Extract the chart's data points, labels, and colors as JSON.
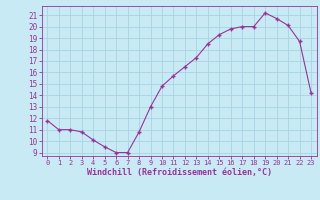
{
  "x": [
    0,
    1,
    2,
    3,
    4,
    5,
    6,
    7,
    8,
    9,
    10,
    11,
    12,
    13,
    14,
    15,
    16,
    17,
    18,
    19,
    20,
    21,
    22,
    23
  ],
  "y": [
    11.8,
    11.0,
    11.0,
    10.8,
    10.1,
    9.5,
    9.0,
    9.0,
    10.8,
    13.0,
    14.8,
    15.7,
    16.5,
    17.3,
    18.5,
    19.3,
    19.8,
    20.0,
    20.0,
    21.2,
    20.7,
    20.1,
    18.7,
    14.2
  ],
  "line_color": "#993399",
  "marker_color": "#993399",
  "bg_color": "#c8eaf4",
  "grid_color": "#aad4e4",
  "xlabel": "Windchill (Refroidissement éolien,°C)",
  "xlabel_color": "#993399",
  "tick_color": "#993399",
  "ylim": [
    8.7,
    21.8
  ],
  "xlim": [
    -0.5,
    23.5
  ],
  "yticks": [
    9,
    10,
    11,
    12,
    13,
    14,
    15,
    16,
    17,
    18,
    19,
    20,
    21
  ],
  "xticks": [
    0,
    1,
    2,
    3,
    4,
    5,
    6,
    7,
    8,
    9,
    10,
    11,
    12,
    13,
    14,
    15,
    16,
    17,
    18,
    19,
    20,
    21,
    22,
    23
  ]
}
